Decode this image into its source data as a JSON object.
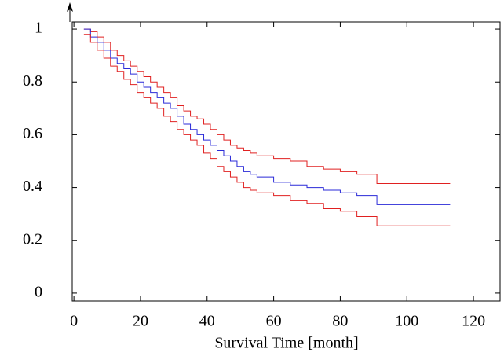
{
  "chart_data": {
    "type": "line",
    "step": "post",
    "xlabel": "Survival Time [month]",
    "x": [
      3,
      5,
      7,
      9,
      11,
      13,
      15,
      17,
      19,
      21,
      23,
      25,
      27,
      29,
      31,
      33,
      35,
      37,
      39,
      41,
      43,
      45,
      47,
      49,
      51,
      53,
      55,
      60,
      65,
      70,
      75,
      80,
      85,
      91,
      113
    ],
    "series": [
      {
        "color": "#e02020",
        "values": [
          1,
          0.99,
          0.97,
          0.95,
          0.92,
          0.9,
          0.88,
          0.86,
          0.84,
          0.82,
          0.8,
          0.78,
          0.76,
          0.74,
          0.71,
          0.69,
          0.67,
          0.66,
          0.64,
          0.62,
          0.6,
          0.58,
          0.56,
          0.55,
          0.54,
          0.53,
          0.52,
          0.51,
          0.5,
          0.48,
          0.47,
          0.46,
          0.45,
          0.415,
          0.415
        ]
      },
      {
        "color": "#2a2ad8",
        "values": [
          1,
          0.97,
          0.95,
          0.92,
          0.89,
          0.87,
          0.85,
          0.83,
          0.8,
          0.78,
          0.76,
          0.74,
          0.72,
          0.7,
          0.67,
          0.64,
          0.62,
          0.6,
          0.58,
          0.56,
          0.54,
          0.52,
          0.5,
          0.48,
          0.46,
          0.45,
          0.44,
          0.42,
          0.41,
          0.4,
          0.39,
          0.38,
          0.37,
          0.335,
          0.335
        ]
      },
      {
        "color": "#e02020",
        "values": [
          0.98,
          0.95,
          0.92,
          0.89,
          0.86,
          0.84,
          0.81,
          0.79,
          0.76,
          0.74,
          0.72,
          0.7,
          0.67,
          0.65,
          0.62,
          0.6,
          0.58,
          0.56,
          0.53,
          0.51,
          0.48,
          0.46,
          0.44,
          0.42,
          0.4,
          0.39,
          0.38,
          0.37,
          0.35,
          0.34,
          0.32,
          0.31,
          0.29,
          0.255,
          0.255
        ]
      }
    ],
    "xlim": [
      -0.5,
      128
    ],
    "ylim": [
      -0.03,
      1.027
    ],
    "xticks": [
      0,
      20,
      40,
      60,
      80,
      100,
      120
    ],
    "yticks": [
      0,
      0.2,
      0.4,
      0.6,
      0.8,
      1
    ]
  }
}
